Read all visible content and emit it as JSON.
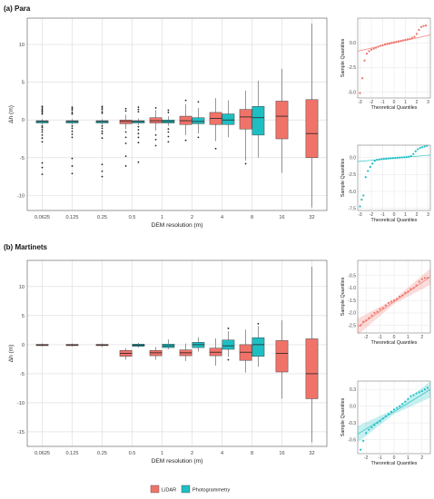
{
  "colors": {
    "lidar": "#F0736A",
    "photo": "#1DBFC3",
    "grid": "#DADADA",
    "dots": "#222222"
  },
  "legend": {
    "lidar": "LiDAR",
    "photo": "Photogrammetry"
  },
  "chart_data": [
    {
      "type": "box",
      "title": "(a)  Para",
      "xlabel": "DEM resolution (m)",
      "ylabel": "Δh (m)",
      "categories": [
        "0.0625",
        "0.125",
        "0.25",
        "0.5",
        "1",
        "2",
        "4",
        "8",
        "16",
        "32"
      ],
      "ylim": [
        -12,
        13.5
      ],
      "yticks": [
        -10,
        -5,
        0,
        5,
        10
      ],
      "series": [
        {
          "name": "LiDAR",
          "key": "lidar",
          "boxes": [
            {
              "cat": "0.5",
              "q1": -0.5,
              "median": -0.2,
              "q3": 0.0,
              "whislo": -1.2,
              "whishi": 0.7,
              "outliers": [
                1.5,
                1.2,
                -1.6,
                -2.3,
                -3.1,
                -4.8,
                -6.1
              ]
            },
            {
              "cat": "1",
              "q1": -0.4,
              "median": -0.1,
              "q3": 0.3,
              "whislo": -1.4,
              "whishi": 1.3,
              "outliers": [
                1.6,
                -2.0,
                -2.6,
                -3.4
              ]
            },
            {
              "cat": "2",
              "q1": -0.6,
              "median": -0.1,
              "q3": 0.5,
              "whislo": -2.0,
              "whishi": 2.1,
              "outliers": [
                2.6,
                -2.7
              ]
            },
            {
              "cat": "4",
              "q1": -0.6,
              "median": 0.2,
              "q3": 1.0,
              "whislo": -2.8,
              "whishi": 2.9,
              "outliers": [
                -3.8
              ]
            },
            {
              "cat": "8",
              "q1": -1.2,
              "median": 0.4,
              "q3": 1.4,
              "whislo": -5.4,
              "whishi": 3.9,
              "outliers": [
                -5.8
              ]
            },
            {
              "cat": "16",
              "q1": -2.5,
              "median": 0.5,
              "q3": 2.5,
              "whislo": -7.0,
              "whishi": 6.8,
              "outliers": []
            },
            {
              "cat": "32",
              "q1": -5.0,
              "median": -1.8,
              "q3": 2.7,
              "whislo": -11.6,
              "whishi": 12.8,
              "outliers": []
            }
          ]
        },
        {
          "name": "Photogrammetry",
          "key": "photo",
          "boxes": [
            {
              "cat": "0.0625",
              "q1": -0.4,
              "median": -0.2,
              "q3": -0.1,
              "whislo": -0.6,
              "whishi": 0.1,
              "outliers": [
                1.8,
                1.6,
                1.4,
                1.2,
                1.0,
                0.8,
                -0.8,
                -1.0,
                -1.3,
                -1.6,
                -2.0,
                -2.4,
                -2.9,
                -5.7,
                -6.3,
                -7.2
              ]
            },
            {
              "cat": "0.125",
              "q1": -0.4,
              "median": -0.2,
              "q3": -0.1,
              "whislo": -0.6,
              "whishi": 0.1,
              "outliers": [
                1.7,
                1.5,
                1.3,
                1.0,
                0.8,
                -0.8,
                -1.1,
                -1.5,
                -1.9,
                -2.3,
                -5.1,
                -6.1,
                -7.1
              ]
            },
            {
              "cat": "0.25",
              "q1": -0.4,
              "median": -0.2,
              "q3": -0.1,
              "whislo": -0.6,
              "whishi": 0.1,
              "outliers": [
                1.8,
                1.6,
                1.4,
                1.1,
                0.9,
                -0.8,
                -1.1,
                -1.5,
                -1.8,
                -2.4,
                -5.9,
                -6.8,
                -7.5
              ]
            },
            {
              "cat": "0.5",
              "q1": -0.4,
              "median": -0.2,
              "q3": -0.1,
              "whislo": -0.7,
              "whishi": 0.2,
              "outliers": [
                1.7,
                1.4,
                1.1,
                -0.9,
                -1.3,
                -1.8,
                -2.3,
                -3.0,
                -5.6
              ]
            },
            {
              "cat": "1",
              "q1": -0.4,
              "median": -0.2,
              "q3": 0.0,
              "whislo": -0.8,
              "whishi": 0.5,
              "outliers": [
                1.3,
                1.0,
                -1.2,
                -1.6,
                -2.2,
                -2.9
              ]
            },
            {
              "cat": "2",
              "q1": -0.5,
              "median": -0.2,
              "q3": 0.3,
              "whislo": -1.8,
              "whishi": 1.6,
              "outliers": [
                2.4,
                -2.3
              ]
            },
            {
              "cat": "4",
              "q1": -0.6,
              "median": 0.0,
              "q3": 0.8,
              "whislo": -2.3,
              "whishi": 2.6,
              "outliers": []
            },
            {
              "cat": "8",
              "q1": -2.0,
              "median": 0.3,
              "q3": 1.8,
              "whislo": -5.0,
              "whishi": 5.2,
              "outliers": []
            }
          ]
        }
      ]
    },
    {
      "type": "box",
      "title": "(b)  Martinets",
      "xlabel": "DEM resolution (m)",
      "ylabel": "Δh (m)",
      "categories": [
        "0.0625",
        "0.125",
        "0.25",
        "0.5",
        "1",
        "2",
        "4",
        "8",
        "16",
        "32"
      ],
      "ylim": [
        -17.5,
        14.5
      ],
      "yticks": [
        -15,
        -10,
        -5,
        0,
        5,
        10
      ],
      "series": [
        {
          "name": "LiDAR",
          "key": "lidar",
          "boxes": [
            {
              "cat": "0.0625",
              "q1": -0.15,
              "median": -0.05,
              "q3": 0.05,
              "whislo": -0.3,
              "whishi": 0.2,
              "outliers": []
            },
            {
              "cat": "0.125",
              "q1": -0.15,
              "median": -0.05,
              "q3": 0.05,
              "whislo": -0.3,
              "whishi": 0.2,
              "outliers": []
            },
            {
              "cat": "0.25",
              "q1": -0.15,
              "median": -0.05,
              "q3": 0.05,
              "whislo": -0.4,
              "whishi": 0.2,
              "outliers": []
            },
            {
              "cat": "0.5",
              "q1": -2.0,
              "median": -1.5,
              "q3": -1.0,
              "whislo": -2.6,
              "whishi": -0.6,
              "outliers": []
            },
            {
              "cat": "1",
              "q1": -1.9,
              "median": -1.4,
              "q3": -1.0,
              "whislo": -2.6,
              "whishi": -0.4,
              "outliers": []
            },
            {
              "cat": "2",
              "q1": -1.9,
              "median": -1.4,
              "q3": -0.9,
              "whislo": -2.8,
              "whishi": 0.2,
              "outliers": []
            },
            {
              "cat": "4",
              "q1": -1.9,
              "median": -1.3,
              "q3": -0.6,
              "whislo": -3.6,
              "whishi": 1.1,
              "outliers": []
            },
            {
              "cat": "8",
              "q1": -2.7,
              "median": -1.3,
              "q3": 0.0,
              "whislo": -4.8,
              "whishi": 2.6,
              "outliers": []
            },
            {
              "cat": "16",
              "q1": -4.7,
              "median": -1.5,
              "q3": 0.7,
              "whislo": -9.3,
              "whishi": 4.2,
              "outliers": []
            },
            {
              "cat": "32",
              "q1": -9.3,
              "median": -5.0,
              "q3": 1.0,
              "whislo": -16.8,
              "whishi": 13.4,
              "outliers": []
            }
          ]
        },
        {
          "name": "Photogrammetry",
          "key": "photo",
          "boxes": [
            {
              "cat": "0.5",
              "q1": -0.3,
              "median": -0.1,
              "q3": 0.1,
              "whislo": -0.5,
              "whishi": 0.3,
              "outliers": []
            },
            {
              "cat": "1",
              "q1": -0.5,
              "median": -0.2,
              "q3": 0.1,
              "whislo": -0.8,
              "whishi": 0.9,
              "outliers": []
            },
            {
              "cat": "2",
              "q1": -0.5,
              "median": 0.0,
              "q3": 0.4,
              "whislo": -1.2,
              "whishi": 1.3,
              "outliers": []
            },
            {
              "cat": "4",
              "q1": -0.8,
              "median": -0.2,
              "q3": 0.8,
              "whislo": -2.1,
              "whishi": 2.3,
              "outliers": [
                2.8,
                -2.6
              ]
            },
            {
              "cat": "8",
              "q1": -2.0,
              "median": 0.0,
              "q3": 1.2,
              "whislo": -3.8,
              "whishi": 3.2,
              "outliers": [
                3.6
              ]
            }
          ]
        }
      ]
    },
    {
      "type": "scatter",
      "name": "qq-para-lidar",
      "series_key": "lidar",
      "xlabel": "Theoretical Quantiles",
      "ylabel": "Sample Quantiles",
      "xlim": [
        -3.2,
        3.2
      ],
      "ylim": [
        -5.6,
        2.5
      ],
      "xticks": [
        -3,
        -2,
        -1,
        0,
        1,
        2,
        3
      ],
      "yticks": [
        -5.0,
        -2.5,
        0.0
      ],
      "ref_line": [
        [
          -3.2,
          -0.85
        ],
        [
          3.2,
          0.8
        ]
      ],
      "band": false,
      "points": [
        [
          -3.0,
          -5.1
        ],
        [
          -2.8,
          -3.6
        ],
        [
          -2.6,
          -1.8
        ],
        [
          -2.4,
          -1.1
        ],
        [
          -2.2,
          -0.85
        ],
        [
          -2.0,
          -0.7
        ],
        [
          -1.8,
          -0.6
        ],
        [
          -1.6,
          -0.5
        ],
        [
          -1.4,
          -0.4
        ],
        [
          -1.2,
          -0.3
        ],
        [
          -1.0,
          -0.25
        ],
        [
          -0.8,
          -0.15
        ],
        [
          -0.6,
          -0.1
        ],
        [
          -0.4,
          -0.05
        ],
        [
          -0.2,
          0.0
        ],
        [
          0.0,
          0.05
        ],
        [
          0.2,
          0.1
        ],
        [
          0.4,
          0.15
        ],
        [
          0.6,
          0.2
        ],
        [
          0.8,
          0.25
        ],
        [
          1.0,
          0.3
        ],
        [
          1.2,
          0.35
        ],
        [
          1.4,
          0.4
        ],
        [
          1.6,
          0.5
        ],
        [
          1.8,
          0.6
        ],
        [
          2.0,
          0.9
        ],
        [
          2.2,
          1.3
        ],
        [
          2.4,
          1.6
        ],
        [
          2.6,
          1.7
        ],
        [
          2.8,
          1.75
        ]
      ]
    },
    {
      "type": "scatter",
      "name": "qq-para-photo",
      "series_key": "photo",
      "xlabel": "Theoretical Quantiles",
      "ylabel": "Sample Quantiles",
      "xlim": [
        -3.2,
        3.2
      ],
      "ylim": [
        -7.8,
        1.8
      ],
      "xticks": [
        -3,
        -2,
        -1,
        0,
        1,
        2,
        3
      ],
      "yticks": [
        -7.5,
        -5.0,
        -2.5,
        0.0
      ],
      "ref_line": [
        [
          -3.2,
          -0.6
        ],
        [
          3.2,
          0.35
        ]
      ],
      "band": false,
      "points": [
        [
          -3.0,
          -7.2
        ],
        [
          -2.85,
          -6.2
        ],
        [
          -2.7,
          -5.6
        ],
        [
          -2.5,
          -2.9
        ],
        [
          -2.3,
          -2.0
        ],
        [
          -2.1,
          -1.4
        ],
        [
          -1.9,
          -0.9
        ],
        [
          -1.7,
          -0.5
        ],
        [
          -1.5,
          -0.35
        ],
        [
          -1.3,
          -0.3
        ],
        [
          -1.1,
          -0.25
        ],
        [
          -0.9,
          -0.2
        ],
        [
          -0.7,
          -0.18
        ],
        [
          -0.5,
          -0.15
        ],
        [
          -0.3,
          -0.12
        ],
        [
          -0.1,
          -0.1
        ],
        [
          0.1,
          -0.08
        ],
        [
          0.3,
          -0.05
        ],
        [
          0.5,
          -0.02
        ],
        [
          0.7,
          0.0
        ],
        [
          0.9,
          0.02
        ],
        [
          1.1,
          0.05
        ],
        [
          1.3,
          0.1
        ],
        [
          1.5,
          0.2
        ],
        [
          1.7,
          0.5
        ],
        [
          1.9,
          0.9
        ],
        [
          2.1,
          1.2
        ],
        [
          2.3,
          1.4
        ],
        [
          2.5,
          1.5
        ],
        [
          2.7,
          1.6
        ],
        [
          2.9,
          1.7
        ]
      ]
    },
    {
      "type": "scatter",
      "name": "qq-martinets-lidar",
      "series_key": "lidar",
      "xlabel": "Theoretical Quantiles",
      "ylabel": "Sample Quantiles",
      "xlim": [
        -2.6,
        2.6
      ],
      "ylim": [
        -2.8,
        0.1
      ],
      "xticks": [
        -2,
        -1,
        0,
        1,
        2
      ],
      "yticks": [
        -2.5,
        -2.0,
        -1.5,
        -1.0,
        -0.5
      ],
      "ref_line": [
        [
          -2.6,
          -2.55
        ],
        [
          2.6,
          -0.55
        ]
      ],
      "band": true,
      "points": [
        [
          -2.4,
          -2.5
        ],
        [
          -2.2,
          -2.35
        ],
        [
          -2.0,
          -2.3
        ],
        [
          -1.8,
          -2.2
        ],
        [
          -1.6,
          -2.1
        ],
        [
          -1.4,
          -2.0
        ],
        [
          -1.2,
          -1.95
        ],
        [
          -1.0,
          -1.85
        ],
        [
          -0.8,
          -1.8
        ],
        [
          -0.6,
          -1.7
        ],
        [
          -0.4,
          -1.6
        ],
        [
          -0.2,
          -1.55
        ],
        [
          0.0,
          -1.5
        ],
        [
          0.2,
          -1.45
        ],
        [
          0.4,
          -1.35
        ],
        [
          0.6,
          -1.3
        ],
        [
          0.8,
          -1.2
        ],
        [
          1.0,
          -1.15
        ],
        [
          1.2,
          -1.05
        ],
        [
          1.4,
          -1.0
        ],
        [
          1.6,
          -0.9
        ],
        [
          1.8,
          -0.75
        ],
        [
          2.0,
          -0.65
        ],
        [
          2.2,
          -0.6
        ],
        [
          2.4,
          -0.6
        ]
      ]
    },
    {
      "type": "scatter",
      "name": "qq-martinets-photo",
      "series_key": "photo",
      "xlabel": "Theoretical Quantiles",
      "ylabel": "Sample Quantiles",
      "xlim": [
        -2.6,
        2.6
      ],
      "ylim": [
        -0.85,
        0.45
      ],
      "xticks": [
        -2,
        -1,
        0,
        1,
        2
      ],
      "yticks": [
        -0.6,
        -0.3,
        0.0,
        0.3
      ],
      "ref_line": [
        [
          -2.6,
          -0.5
        ],
        [
          2.6,
          0.3
        ]
      ],
      "band": true,
      "points": [
        [
          -2.4,
          -0.78
        ],
        [
          -2.2,
          -0.62
        ],
        [
          -2.0,
          -0.48
        ],
        [
          -1.8,
          -0.42
        ],
        [
          -1.6,
          -0.38
        ],
        [
          -1.4,
          -0.34
        ],
        [
          -1.2,
          -0.3
        ],
        [
          -1.0,
          -0.27
        ],
        [
          -0.8,
          -0.22
        ],
        [
          -0.6,
          -0.18
        ],
        [
          -0.4,
          -0.14
        ],
        [
          -0.2,
          -0.1
        ],
        [
          0.0,
          -0.06
        ],
        [
          0.2,
          -0.03
        ],
        [
          0.4,
          0.0
        ],
        [
          0.6,
          0.04
        ],
        [
          0.8,
          0.08
        ],
        [
          1.0,
          0.13
        ],
        [
          1.2,
          0.18
        ],
        [
          1.4,
          0.2
        ],
        [
          1.6,
          0.23
        ],
        [
          1.8,
          0.25
        ],
        [
          2.0,
          0.27
        ],
        [
          2.2,
          0.3
        ],
        [
          2.4,
          0.33
        ]
      ]
    }
  ]
}
